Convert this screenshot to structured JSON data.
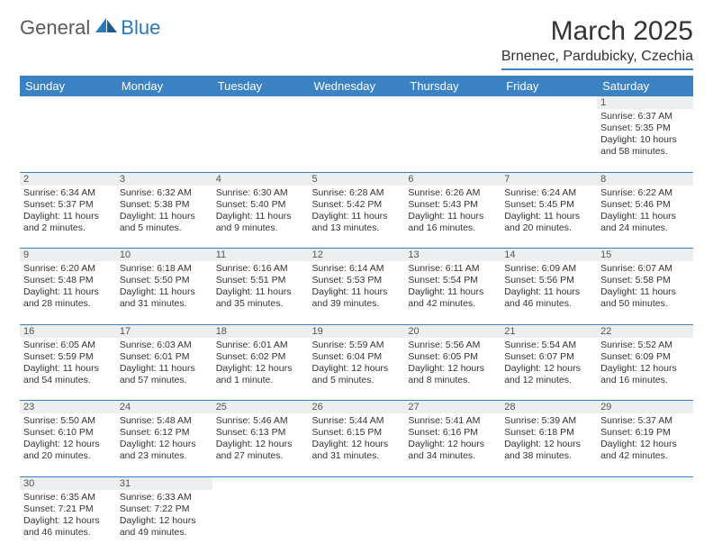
{
  "logo": {
    "general": "General",
    "blue": "Blue"
  },
  "title": "March 2025",
  "location": "Brnenec, Pardubicky, Czechia",
  "colors": {
    "header_bg": "#3a82c4",
    "header_text": "#ffffff",
    "daynum_bg": "#eceeef",
    "border": "#3a82c4",
    "text": "#333333",
    "logo_gray": "#5a5a5a",
    "logo_blue": "#2a7ab8"
  },
  "weekdays": [
    "Sunday",
    "Monday",
    "Tuesday",
    "Wednesday",
    "Thursday",
    "Friday",
    "Saturday"
  ],
  "weeks": [
    [
      null,
      null,
      null,
      null,
      null,
      null,
      {
        "n": "1",
        "sr": "Sunrise: 6:37 AM",
        "ss": "Sunset: 5:35 PM",
        "dl1": "Daylight: 10 hours",
        "dl2": "and 58 minutes."
      }
    ],
    [
      {
        "n": "2",
        "sr": "Sunrise: 6:34 AM",
        "ss": "Sunset: 5:37 PM",
        "dl1": "Daylight: 11 hours",
        "dl2": "and 2 minutes."
      },
      {
        "n": "3",
        "sr": "Sunrise: 6:32 AM",
        "ss": "Sunset: 5:38 PM",
        "dl1": "Daylight: 11 hours",
        "dl2": "and 5 minutes."
      },
      {
        "n": "4",
        "sr": "Sunrise: 6:30 AM",
        "ss": "Sunset: 5:40 PM",
        "dl1": "Daylight: 11 hours",
        "dl2": "and 9 minutes."
      },
      {
        "n": "5",
        "sr": "Sunrise: 6:28 AM",
        "ss": "Sunset: 5:42 PM",
        "dl1": "Daylight: 11 hours",
        "dl2": "and 13 minutes."
      },
      {
        "n": "6",
        "sr": "Sunrise: 6:26 AM",
        "ss": "Sunset: 5:43 PM",
        "dl1": "Daylight: 11 hours",
        "dl2": "and 16 minutes."
      },
      {
        "n": "7",
        "sr": "Sunrise: 6:24 AM",
        "ss": "Sunset: 5:45 PM",
        "dl1": "Daylight: 11 hours",
        "dl2": "and 20 minutes."
      },
      {
        "n": "8",
        "sr": "Sunrise: 6:22 AM",
        "ss": "Sunset: 5:46 PM",
        "dl1": "Daylight: 11 hours",
        "dl2": "and 24 minutes."
      }
    ],
    [
      {
        "n": "9",
        "sr": "Sunrise: 6:20 AM",
        "ss": "Sunset: 5:48 PM",
        "dl1": "Daylight: 11 hours",
        "dl2": "and 28 minutes."
      },
      {
        "n": "10",
        "sr": "Sunrise: 6:18 AM",
        "ss": "Sunset: 5:50 PM",
        "dl1": "Daylight: 11 hours",
        "dl2": "and 31 minutes."
      },
      {
        "n": "11",
        "sr": "Sunrise: 6:16 AM",
        "ss": "Sunset: 5:51 PM",
        "dl1": "Daylight: 11 hours",
        "dl2": "and 35 minutes."
      },
      {
        "n": "12",
        "sr": "Sunrise: 6:14 AM",
        "ss": "Sunset: 5:53 PM",
        "dl1": "Daylight: 11 hours",
        "dl2": "and 39 minutes."
      },
      {
        "n": "13",
        "sr": "Sunrise: 6:11 AM",
        "ss": "Sunset: 5:54 PM",
        "dl1": "Daylight: 11 hours",
        "dl2": "and 42 minutes."
      },
      {
        "n": "14",
        "sr": "Sunrise: 6:09 AM",
        "ss": "Sunset: 5:56 PM",
        "dl1": "Daylight: 11 hours",
        "dl2": "and 46 minutes."
      },
      {
        "n": "15",
        "sr": "Sunrise: 6:07 AM",
        "ss": "Sunset: 5:58 PM",
        "dl1": "Daylight: 11 hours",
        "dl2": "and 50 minutes."
      }
    ],
    [
      {
        "n": "16",
        "sr": "Sunrise: 6:05 AM",
        "ss": "Sunset: 5:59 PM",
        "dl1": "Daylight: 11 hours",
        "dl2": "and 54 minutes."
      },
      {
        "n": "17",
        "sr": "Sunrise: 6:03 AM",
        "ss": "Sunset: 6:01 PM",
        "dl1": "Daylight: 11 hours",
        "dl2": "and 57 minutes."
      },
      {
        "n": "18",
        "sr": "Sunrise: 6:01 AM",
        "ss": "Sunset: 6:02 PM",
        "dl1": "Daylight: 12 hours",
        "dl2": "and 1 minute."
      },
      {
        "n": "19",
        "sr": "Sunrise: 5:59 AM",
        "ss": "Sunset: 6:04 PM",
        "dl1": "Daylight: 12 hours",
        "dl2": "and 5 minutes."
      },
      {
        "n": "20",
        "sr": "Sunrise: 5:56 AM",
        "ss": "Sunset: 6:05 PM",
        "dl1": "Daylight: 12 hours",
        "dl2": "and 8 minutes."
      },
      {
        "n": "21",
        "sr": "Sunrise: 5:54 AM",
        "ss": "Sunset: 6:07 PM",
        "dl1": "Daylight: 12 hours",
        "dl2": "and 12 minutes."
      },
      {
        "n": "22",
        "sr": "Sunrise: 5:52 AM",
        "ss": "Sunset: 6:09 PM",
        "dl1": "Daylight: 12 hours",
        "dl2": "and 16 minutes."
      }
    ],
    [
      {
        "n": "23",
        "sr": "Sunrise: 5:50 AM",
        "ss": "Sunset: 6:10 PM",
        "dl1": "Daylight: 12 hours",
        "dl2": "and 20 minutes."
      },
      {
        "n": "24",
        "sr": "Sunrise: 5:48 AM",
        "ss": "Sunset: 6:12 PM",
        "dl1": "Daylight: 12 hours",
        "dl2": "and 23 minutes."
      },
      {
        "n": "25",
        "sr": "Sunrise: 5:46 AM",
        "ss": "Sunset: 6:13 PM",
        "dl1": "Daylight: 12 hours",
        "dl2": "and 27 minutes."
      },
      {
        "n": "26",
        "sr": "Sunrise: 5:44 AM",
        "ss": "Sunset: 6:15 PM",
        "dl1": "Daylight: 12 hours",
        "dl2": "and 31 minutes."
      },
      {
        "n": "27",
        "sr": "Sunrise: 5:41 AM",
        "ss": "Sunset: 6:16 PM",
        "dl1": "Daylight: 12 hours",
        "dl2": "and 34 minutes."
      },
      {
        "n": "28",
        "sr": "Sunrise: 5:39 AM",
        "ss": "Sunset: 6:18 PM",
        "dl1": "Daylight: 12 hours",
        "dl2": "and 38 minutes."
      },
      {
        "n": "29",
        "sr": "Sunrise: 5:37 AM",
        "ss": "Sunset: 6:19 PM",
        "dl1": "Daylight: 12 hours",
        "dl2": "and 42 minutes."
      }
    ],
    [
      {
        "n": "30",
        "sr": "Sunrise: 6:35 AM",
        "ss": "Sunset: 7:21 PM",
        "dl1": "Daylight: 12 hours",
        "dl2": "and 46 minutes."
      },
      {
        "n": "31",
        "sr": "Sunrise: 6:33 AM",
        "ss": "Sunset: 7:22 PM",
        "dl1": "Daylight: 12 hours",
        "dl2": "and 49 minutes."
      },
      null,
      null,
      null,
      null,
      null
    ]
  ]
}
